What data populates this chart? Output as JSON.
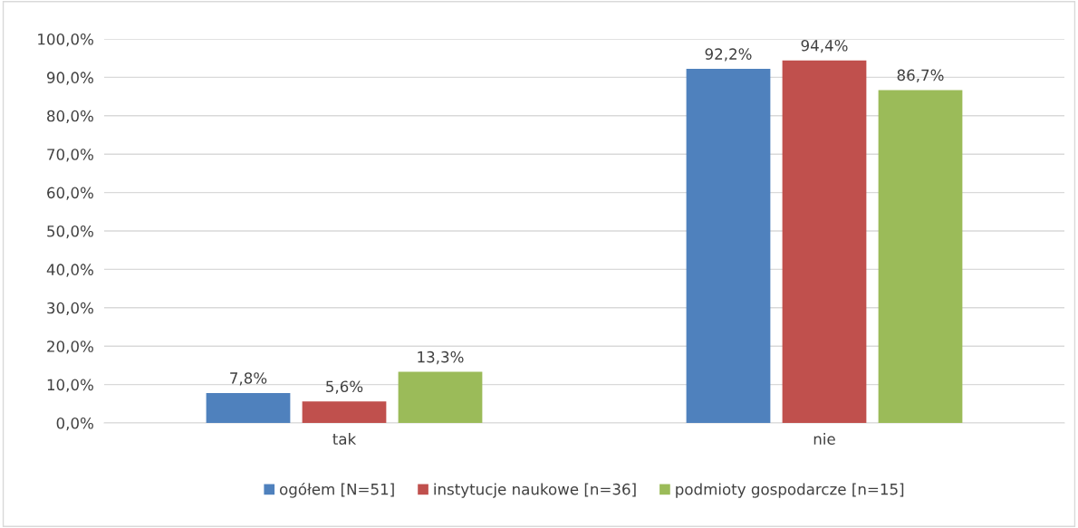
{
  "chart_data": {
    "type": "bar",
    "categories": [
      "tak",
      "nie"
    ],
    "series": [
      {
        "name": "ogółem [N=51]",
        "color": "#4f81bd",
        "values": [
          7.8,
          92.2
        ],
        "value_labels": [
          "7,8%",
          "92,2%"
        ]
      },
      {
        "name": "instytucje naukowe [n=36]",
        "color": "#c0504d",
        "values": [
          5.6,
          94.4
        ],
        "value_labels": [
          "5,6%",
          "94,4%"
        ]
      },
      {
        "name": "podmioty gospodarcze [n=15]",
        "color": "#9bbb59",
        "values": [
          13.3,
          86.7
        ],
        "value_labels": [
          "13,3%",
          "86,7%"
        ]
      }
    ],
    "ylim": [
      0,
      100
    ],
    "yticks": [
      {
        "value": 0,
        "label": "0,0%"
      },
      {
        "value": 10,
        "label": "10,0%"
      },
      {
        "value": 20,
        "label": "20,0%"
      },
      {
        "value": 30,
        "label": "30,0%"
      },
      {
        "value": 40,
        "label": "40,0%"
      },
      {
        "value": 50,
        "label": "50,0%"
      },
      {
        "value": 60,
        "label": "60,0%"
      },
      {
        "value": 70,
        "label": "70,0%"
      },
      {
        "value": 80,
        "label": "80,0%"
      },
      {
        "value": 90,
        "label": "90,0%"
      },
      {
        "value": 100,
        "label": "100,0%"
      }
    ],
    "grid": "y",
    "legend": "bottom"
  }
}
